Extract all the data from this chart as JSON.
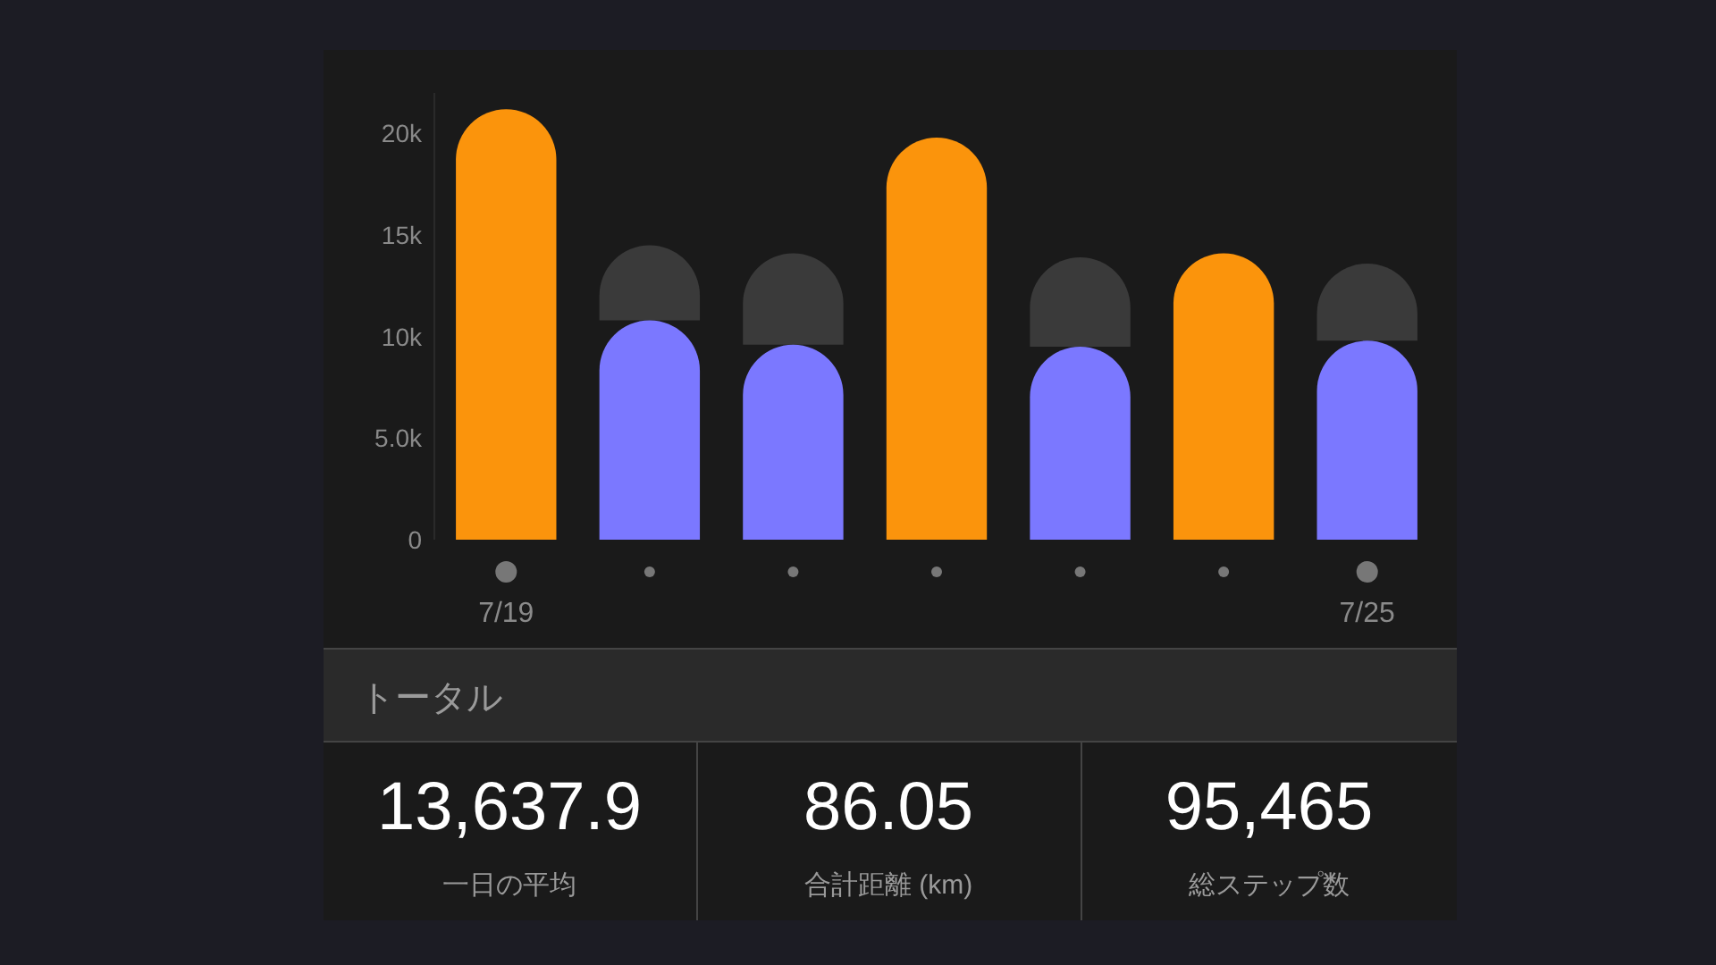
{
  "chart_data": {
    "type": "bar",
    "categories": [
      "7/19",
      null,
      null,
      null,
      null,
      null,
      "7/25"
    ],
    "series": [
      {
        "colors": [
          "#fb940c",
          "#7b78ff",
          "#7b78ff",
          "#fb940c",
          "#7b78ff",
          "#fb940c",
          "#7b78ff"
        ],
        "values": [
          21200,
          10800,
          9600,
          19800,
          9500,
          14100,
          9800
        ]
      },
      {
        "color": "#3a3a3a",
        "values": [
          null,
          3700,
          4500,
          null,
          4400,
          null,
          3800
        ]
      }
    ],
    "stacked": true,
    "ylim": [
      0,
      22000
    ],
    "yticks": [
      0,
      {
        "value": 5000,
        "label": "5.0k"
      },
      {
        "value": 10000,
        "label": "10k"
      },
      {
        "value": 15000,
        "label": "15k"
      },
      {
        "value": 20000,
        "label": "20k"
      }
    ],
    "grid": false,
    "annotations": [
      "トータル",
      "13,637.9",
      "一日の平均",
      "86.05",
      "合計距離 (km)",
      "95,465",
      "総ステップ数"
    ]
  }
}
